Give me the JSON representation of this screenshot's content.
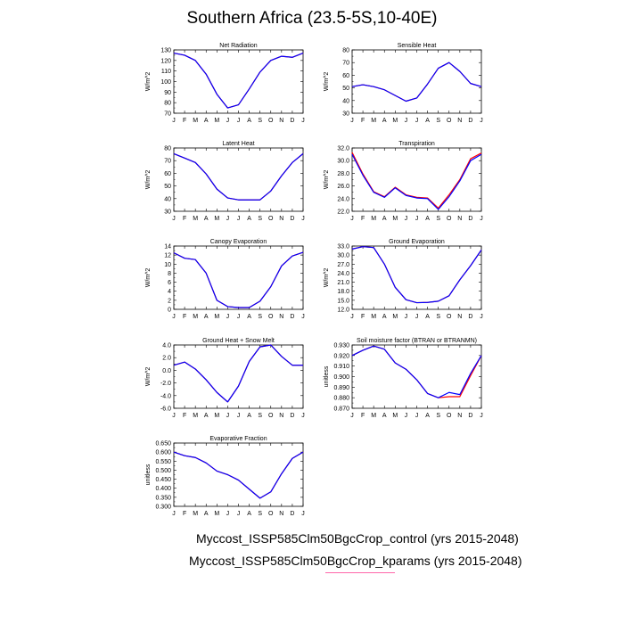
{
  "title": "Southern Africa (23.5-5S,10-40E)",
  "months": [
    "J",
    "F",
    "M",
    "A",
    "M",
    "J",
    "J",
    "A",
    "S",
    "O",
    "N",
    "D",
    "J"
  ],
  "colors": {
    "control": "#0000ff",
    "kparams": "#ff0000"
  },
  "legend": [
    {
      "label": "Myccost_ISSP585Clm50BgcCrop_control (yrs 2015-2048)",
      "color": "#0000ff"
    },
    {
      "label": "Myccost_ISSP585Clm50BgcCrop_kparams (yrs 2015-2048)",
      "color": "#ff66aa"
    }
  ],
  "chart_data": [
    {
      "type": "line",
      "title": "Net Radiation",
      "ylabel": "W/m^2",
      "ylim": [
        70,
        130
      ],
      "yticks": [
        "130",
        "120",
        "110",
        "100",
        "90",
        "80",
        "70"
      ],
      "series": [
        {
          "name": "control",
          "values": [
            127,
            125,
            120,
            107,
            88,
            75,
            78,
            93,
            109,
            120,
            124,
            123,
            127
          ]
        },
        {
          "name": "kparams",
          "values": [
            127,
            125,
            120,
            107,
            88,
            75,
            78,
            93,
            109,
            120,
            124,
            123,
            127
          ]
        }
      ]
    },
    {
      "type": "line",
      "title": "Sensible Heat",
      "ylabel": "W/m^2",
      "ylim": [
        30,
        80
      ],
      "yticks": [
        "80",
        "70",
        "60",
        "50",
        "40",
        "30"
      ],
      "series": [
        {
          "name": "control",
          "values": [
            51,
            52.5,
            51,
            48.5,
            44,
            39.5,
            42,
            53,
            65.5,
            70,
            63,
            53.5,
            51
          ]
        },
        {
          "name": "kparams",
          "values": [
            51,
            52.5,
            51,
            48.5,
            44,
            39.5,
            42,
            53,
            65.5,
            70,
            63,
            53.5,
            51
          ]
        }
      ]
    },
    {
      "type": "line",
      "title": "Latent Heat",
      "ylabel": "W/m^2",
      "ylim": [
        30,
        80
      ],
      "yticks": [
        "80",
        "70",
        "60",
        "50",
        "40",
        "30"
      ],
      "series": [
        {
          "name": "control",
          "values": [
            75.5,
            72,
            68.5,
            59.5,
            47.5,
            40.5,
            39,
            39,
            39,
            46,
            58,
            68.5,
            75.5
          ]
        },
        {
          "name": "kparams",
          "values": [
            75.5,
            72,
            68.5,
            59.5,
            47.5,
            40.5,
            39,
            39,
            39,
            46,
            58,
            68.5,
            75.5
          ]
        }
      ]
    },
    {
      "type": "line",
      "title": "Transpiration",
      "ylabel": "W/m^2",
      "ylim": [
        22,
        32
      ],
      "yticks": [
        "32.0",
        "30.0",
        "28.0",
        "26.0",
        "24.0",
        "22.0"
      ],
      "series": [
        {
          "name": "control",
          "values": [
            31.0,
            27.7,
            25.0,
            24.2,
            25.7,
            24.5,
            24.1,
            24.0,
            22.3,
            24.3,
            26.8,
            30.0,
            31.0
          ]
        },
        {
          "name": "kparams",
          "values": [
            31.3,
            27.9,
            25.1,
            24.3,
            25.8,
            24.6,
            24.2,
            24.1,
            22.5,
            24.6,
            27.0,
            30.3,
            31.2
          ]
        }
      ]
    },
    {
      "type": "line",
      "title": "Canopy Evaporation",
      "ylabel": "W/m^2",
      "ylim": [
        0,
        14
      ],
      "yticks": [
        "14",
        "12",
        "10",
        "8",
        "6",
        "4",
        "2",
        "0"
      ],
      "series": [
        {
          "name": "control",
          "values": [
            12.5,
            11.3,
            11.0,
            8.0,
            2.0,
            0.6,
            0.4,
            0.4,
            1.8,
            5.0,
            9.6,
            11.8,
            12.6
          ]
        },
        {
          "name": "kparams",
          "values": [
            12.5,
            11.3,
            11.0,
            8.0,
            2.0,
            0.6,
            0.4,
            0.4,
            1.8,
            5.0,
            9.6,
            11.8,
            12.6
          ]
        }
      ]
    },
    {
      "type": "line",
      "title": "Ground Evaporation",
      "ylabel": "W/m^2",
      "ylim": [
        12,
        33
      ],
      "yticks": [
        "33.0",
        "30.0",
        "27.0",
        "24.0",
        "21.0",
        "18.0",
        "15.0",
        "12.0"
      ],
      "series": [
        {
          "name": "control",
          "values": [
            32.0,
            32.8,
            32.5,
            27.0,
            19.3,
            15.2,
            14.2,
            14.3,
            14.7,
            16.5,
            21.8,
            26.5,
            31.7
          ]
        },
        {
          "name": "kparams",
          "values": [
            32.0,
            32.8,
            32.5,
            27.0,
            19.3,
            15.2,
            14.2,
            14.3,
            14.7,
            16.5,
            21.8,
            26.5,
            31.7
          ]
        }
      ]
    },
    {
      "type": "line",
      "title": "Ground Heat + Snow Melt",
      "ylabel": "W/m^2",
      "ylim": [
        -6,
        4
      ],
      "yticks": [
        "4.0",
        "2.0",
        "0.0",
        "-2.0",
        "-4.0",
        "-6.0"
      ],
      "series": [
        {
          "name": "control",
          "values": [
            0.8,
            1.3,
            0.2,
            -1.5,
            -3.5,
            -5.0,
            -2.5,
            1.4,
            3.7,
            4.0,
            2.2,
            0.8,
            0.8
          ]
        },
        {
          "name": "kparams",
          "values": [
            0.8,
            1.3,
            0.2,
            -1.5,
            -3.5,
            -5.0,
            -2.5,
            1.4,
            3.7,
            4.0,
            2.2,
            0.8,
            0.8
          ]
        }
      ]
    },
    {
      "type": "line",
      "title": "Soil moisture factor (BTRAN or BTRANMN)",
      "ylabel": "unitless",
      "ylim": [
        0.87,
        0.93
      ],
      "yticks": [
        "0.930",
        "0.920",
        "0.910",
        "0.900",
        "0.890",
        "0.880",
        "0.870"
      ],
      "series": [
        {
          "name": "control",
          "values": [
            0.92,
            0.925,
            0.929,
            0.926,
            0.913,
            0.907,
            0.897,
            0.884,
            0.88,
            0.885,
            0.883,
            0.903,
            0.92
          ]
        },
        {
          "name": "kparams",
          "values": [
            0.92,
            0.925,
            0.929,
            0.926,
            0.913,
            0.907,
            0.897,
            0.884,
            0.88,
            0.881,
            0.881,
            0.901,
            0.92
          ]
        }
      ]
    },
    {
      "type": "line",
      "title": "Evaporative Fraction",
      "ylabel": "unitless",
      "ylim": [
        0.3,
        0.65
      ],
      "yticks": [
        "0.650",
        "0.600",
        "0.550",
        "0.500",
        "0.450",
        "0.400",
        "0.350",
        "0.300"
      ],
      "series": [
        {
          "name": "control",
          "values": [
            0.6,
            0.58,
            0.57,
            0.54,
            0.495,
            0.475,
            0.445,
            0.395,
            0.345,
            0.38,
            0.48,
            0.565,
            0.6
          ]
        },
        {
          "name": "kparams",
          "values": [
            0.6,
            0.58,
            0.57,
            0.54,
            0.495,
            0.475,
            0.445,
            0.395,
            0.345,
            0.38,
            0.48,
            0.565,
            0.6
          ]
        }
      ]
    }
  ]
}
